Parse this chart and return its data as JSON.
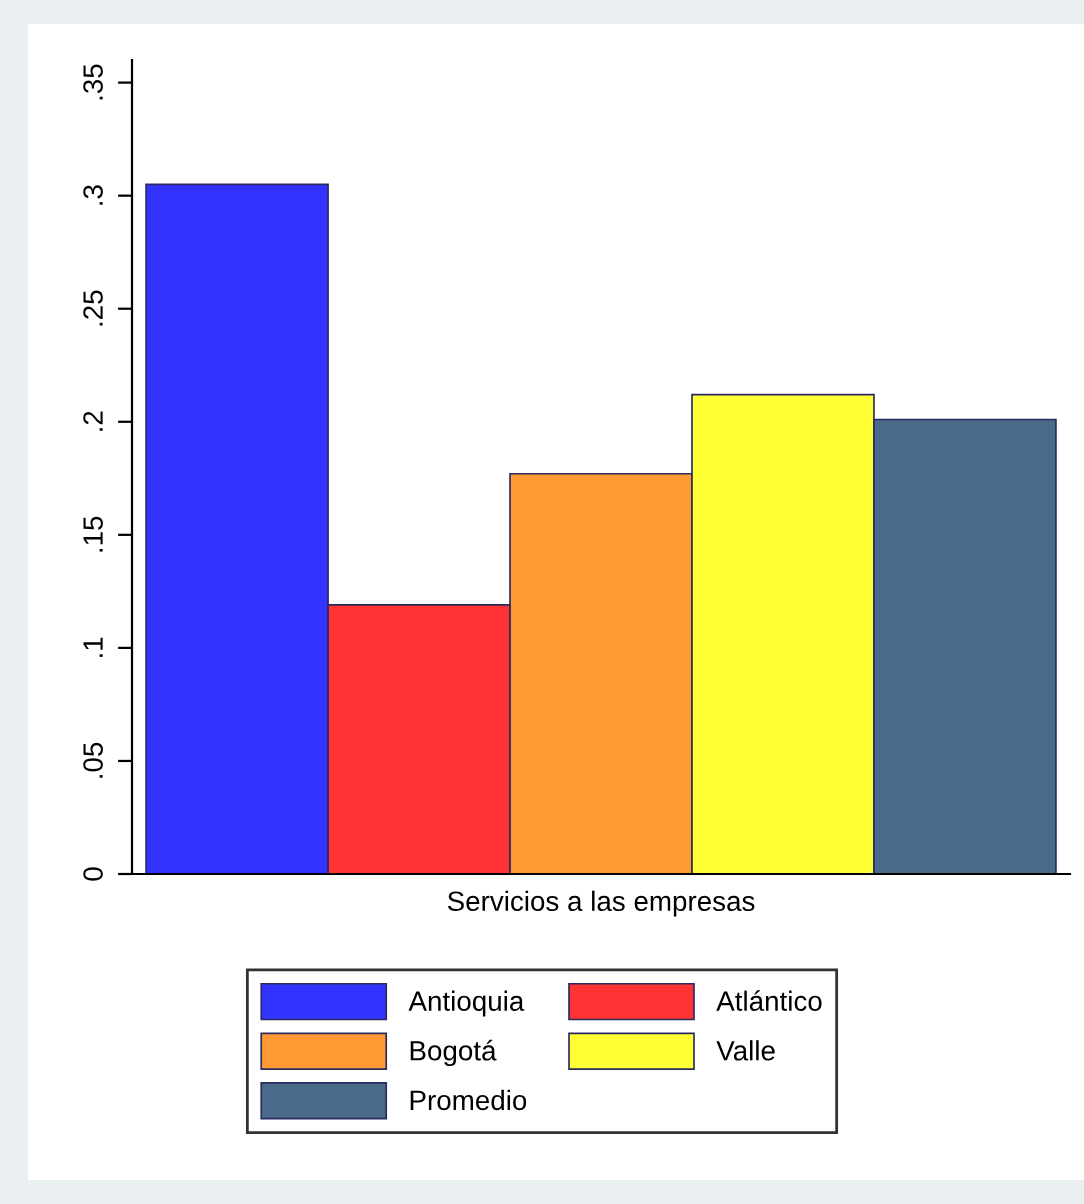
{
  "chart_data": {
    "type": "bar",
    "categories": [
      "Servicios a las empresas"
    ],
    "series": [
      {
        "name": "Antioquia",
        "color": "#3333ff",
        "values": [
          0.305
        ]
      },
      {
        "name": "Atlántico",
        "color": "#ff3333",
        "values": [
          0.119
        ]
      },
      {
        "name": "Bogotá",
        "color": "#ff9933",
        "values": [
          0.177
        ]
      },
      {
        "name": "Valle",
        "color": "#ffff33",
        "values": [
          0.212
        ]
      },
      {
        "name": "Promedio",
        "color": "#4a6a8a",
        "values": [
          0.201
        ]
      }
    ],
    "ylim": [
      0,
      0.36
    ],
    "yticks": [
      {
        "value": 0,
        "label": "0"
      },
      {
        "value": 0.05,
        "label": ".05"
      },
      {
        "value": 0.1,
        "label": ".1"
      },
      {
        "value": 0.15,
        "label": ".15"
      },
      {
        "value": 0.2,
        "label": ".2"
      },
      {
        "value": 0.25,
        "label": ".25"
      },
      {
        "value": 0.3,
        "label": ".3"
      },
      {
        "value": 0.35,
        "label": ".35"
      }
    ],
    "grid": false,
    "legend": "bottom"
  }
}
